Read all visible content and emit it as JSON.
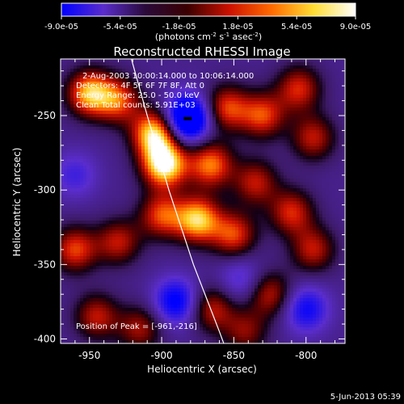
{
  "chart_data": {
    "type": "heatmap",
    "title": "Reconstructed RHESSI Image",
    "xlabel": "Heliocentric X (arcsec)",
    "ylabel": "Heliocentric Y (arcsec)",
    "xlim": [
      -970,
      -773
    ],
    "ylim": [
      -403,
      -212
    ],
    "x_ticks": [
      -950,
      -900,
      -850,
      -800
    ],
    "y_ticks": [
      -250,
      -300,
      -350,
      -400
    ],
    "colorbar": {
      "min": -9e-05,
      "max": 9e-05,
      "tick_labels": [
        "-9.0e-05",
        "-5.4e-05",
        "-1.8e-05",
        "1.8e-05",
        "5.4e-05",
        "9.0e-05"
      ],
      "unit_label_parts": [
        "(photons cm",
        "-2",
        " s",
        "-1",
        " asec",
        "-2",
        ")"
      ],
      "colors": [
        "#0000ff",
        "#5a2dcc",
        "#2a0a3a",
        "#3a0000",
        "#cc1100",
        "#ff6a00",
        "#ffdd33",
        "#ffffff"
      ]
    },
    "annotations": [
      "2-Aug-2003 10:00:14.000  to  10:06:14.000",
      "Detectors: 4F 5F 6F 7F 8F, Att 0",
      "Energy Range: 25.0 - 50.0 keV",
      "Clean     Total counts: 5.91E+03"
    ],
    "peak_label": "Position of Peak = [-961,-216]",
    "peak_position": [
      -961,
      -216
    ],
    "limb_curve": [
      [
        -921,
        -212
      ],
      [
        -910,
        -250
      ],
      [
        -895,
        -300
      ],
      [
        -878,
        -350
      ],
      [
        -860,
        -395
      ],
      [
        -857,
        -403
      ]
    ],
    "sources": [
      {
        "x": -950,
        "y": -235,
        "v": 0.8
      },
      {
        "x": -930,
        "y": -240,
        "v": 0.6
      },
      {
        "x": -905,
        "y": -262,
        "v": 0.9
      },
      {
        "x": -898,
        "y": -283,
        "v": 1.0
      },
      {
        "x": -866,
        "y": -283,
        "v": 0.7
      },
      {
        "x": -875,
        "y": -320,
        "v": 0.85
      },
      {
        "x": -900,
        "y": -317,
        "v": 0.6
      },
      {
        "x": -855,
        "y": -245,
        "v": 0.6
      },
      {
        "x": -830,
        "y": -250,
        "v": 0.6
      },
      {
        "x": -805,
        "y": -232,
        "v": 0.55
      },
      {
        "x": -795,
        "y": -265,
        "v": 0.5
      },
      {
        "x": -835,
        "y": -295,
        "v": 0.5
      },
      {
        "x": -810,
        "y": -315,
        "v": 0.55
      },
      {
        "x": -850,
        "y": -330,
        "v": 0.6
      },
      {
        "x": -930,
        "y": -335,
        "v": 0.5
      },
      {
        "x": -960,
        "y": -340,
        "v": 0.6
      },
      {
        "x": -945,
        "y": -385,
        "v": 0.5
      },
      {
        "x": -915,
        "y": -393,
        "v": 0.45
      },
      {
        "x": -865,
        "y": -380,
        "v": 0.5
      },
      {
        "x": -825,
        "y": -370,
        "v": 0.5
      },
      {
        "x": -795,
        "y": -340,
        "v": 0.5
      },
      {
        "x": -842,
        "y": -395,
        "v": 0.4
      },
      {
        "x": -882,
        "y": -252,
        "v": -1.0
      },
      {
        "x": -890,
        "y": -375,
        "v": -0.6
      },
      {
        "x": -800,
        "y": -380,
        "v": -0.5
      },
      {
        "x": -960,
        "y": -290,
        "v": -0.3
      },
      {
        "x": -845,
        "y": -360,
        "v": -0.3
      }
    ]
  },
  "footer": {
    "date": "5-Jun-2013 05:39"
  }
}
